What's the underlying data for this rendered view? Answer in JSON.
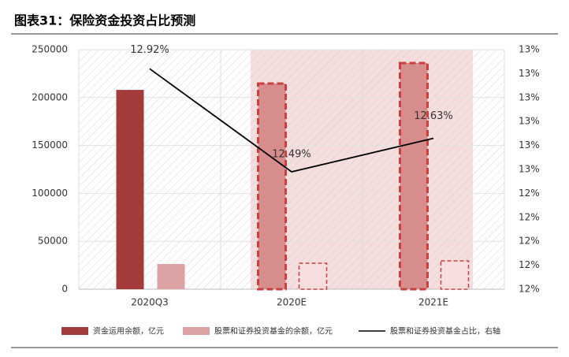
{
  "chart_data": {
    "type": "bar",
    "title": "图表31：保险资金投资占比预测",
    "categories": [
      "2020Q3",
      "2020E",
      "2021E"
    ],
    "series": [
      {
        "name": "资金运用余额，亿元",
        "color": "#a33b3b",
        "values": [
          208000,
          214600,
          236000
        ]
      },
      {
        "name": "股票和证券投资基金的余额，亿元",
        "color": "#dba3a3",
        "values": [
          26300,
          27100,
          29600
        ]
      },
      {
        "name": "股票和证券投资基金占比，右轴",
        "color": "#000000",
        "type": "line",
        "axis": "y2",
        "values": [
          12.92,
          12.49,
          12.63
        ],
        "value_labels": [
          "12.92%",
          "12.49%",
          "12.63%"
        ]
      }
    ],
    "ylim": [
      0,
      250000
    ],
    "yticks": [
      0,
      50000,
      100000,
      150000,
      200000,
      250000
    ],
    "y2lim": [
      12.0,
      13.0
    ],
    "y2ticks": [
      {
        "value": 12.0,
        "label": "12%"
      },
      {
        "value": 12.1,
        "label": "12%"
      },
      {
        "value": 12.2,
        "label": "12%"
      },
      {
        "value": 12.3,
        "label": "12%"
      },
      {
        "value": 12.4,
        "label": "12%"
      },
      {
        "value": 12.5,
        "label": "13%"
      },
      {
        "value": 12.6,
        "label": "13%"
      },
      {
        "value": 12.7,
        "label": "13%"
      },
      {
        "value": 12.8,
        "label": "13%"
      },
      {
        "value": 12.9,
        "label": "13%"
      },
      {
        "value": 13.0,
        "label": "13%"
      }
    ],
    "grid": true
  }
}
